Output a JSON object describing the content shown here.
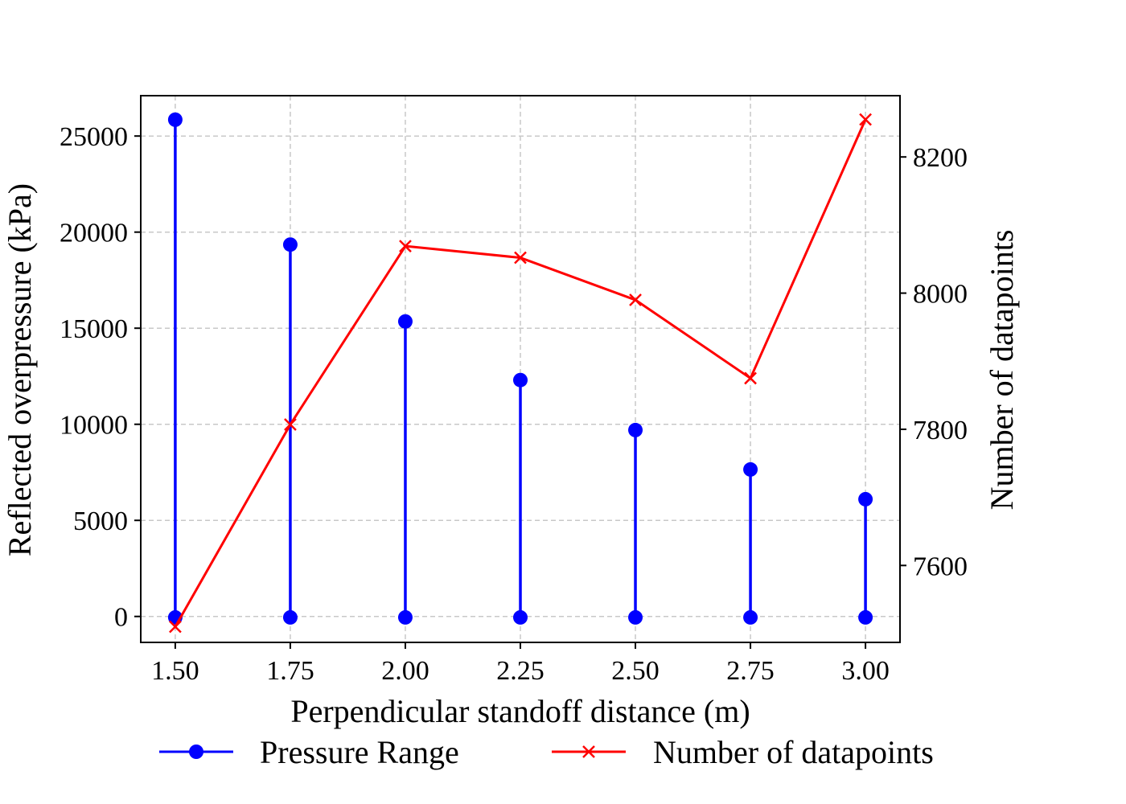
{
  "chart_data": {
    "type": "line",
    "x": [
      1.5,
      1.75,
      2.0,
      2.25,
      2.5,
      2.75,
      3.0
    ],
    "x_tick_labels": [
      "1.50",
      "1.75",
      "2.00",
      "2.25",
      "2.50",
      "2.75",
      "3.00"
    ],
    "xlabel": "Perpendicular standoff distance (m)",
    "ylabel": "Reflected overpressure (kPa)",
    "ylabel_right": "Number of datapoints",
    "xlim": [
      1.425,
      3.075
    ],
    "ylim": [
      -1350,
      27100
    ],
    "ylim_right": [
      7487,
      8290
    ],
    "y_ticks": [
      0,
      5000,
      10000,
      15000,
      20000,
      25000
    ],
    "y_tick_labels": [
      "0",
      "5000",
      "10000",
      "15000",
      "20000",
      "25000"
    ],
    "y_right_ticks": [
      7600,
      7800,
      8000,
      8200
    ],
    "y_right_tick_labels": [
      "7600",
      "7800",
      "8000",
      "8200"
    ],
    "grid": true,
    "legend_position": "bottom-center",
    "series": [
      {
        "name": "Pressure Range",
        "axis": "left",
        "style": "range-bars",
        "color": "#0000ff",
        "marker": "circle",
        "min": [
          -50,
          -50,
          -50,
          -50,
          -50,
          -50,
          -50
        ],
        "max": [
          25850,
          19350,
          15350,
          12300,
          9700,
          7650,
          6100
        ]
      },
      {
        "name": "Number of datapoints",
        "axis": "right",
        "style": "line",
        "color": "#ff0000",
        "marker": "x",
        "values": [
          7510,
          7807,
          8069,
          8052,
          7990,
          7875,
          8255
        ]
      }
    ]
  }
}
